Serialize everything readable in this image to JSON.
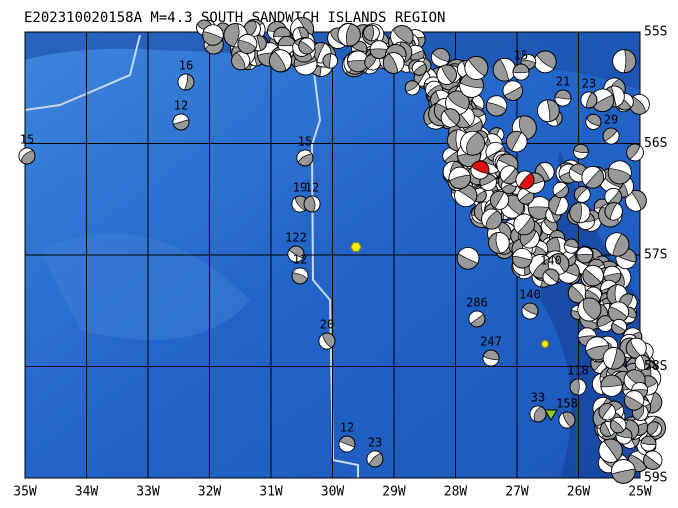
{
  "header": {
    "title": "E202310020158A M=4.3 SOUTH SANDWICH ISLANDS REGION"
  },
  "map": {
    "lon_labels": [
      "35W",
      "34W",
      "33W",
      "32W",
      "31W",
      "30W",
      "29W",
      "28W",
      "27W",
      "26W",
      "25W"
    ],
    "lat_labels": [
      "55S",
      "56S",
      "57S",
      "58S",
      "59S"
    ],
    "event_labels": [
      "16",
      "12",
      "15",
      "15",
      "19",
      "12",
      "122",
      "12",
      "20",
      "12",
      "23",
      "286",
      "247",
      "140",
      "140",
      "33",
      "118",
      "29",
      "23",
      "21",
      "15",
      "158"
    ]
  }
}
